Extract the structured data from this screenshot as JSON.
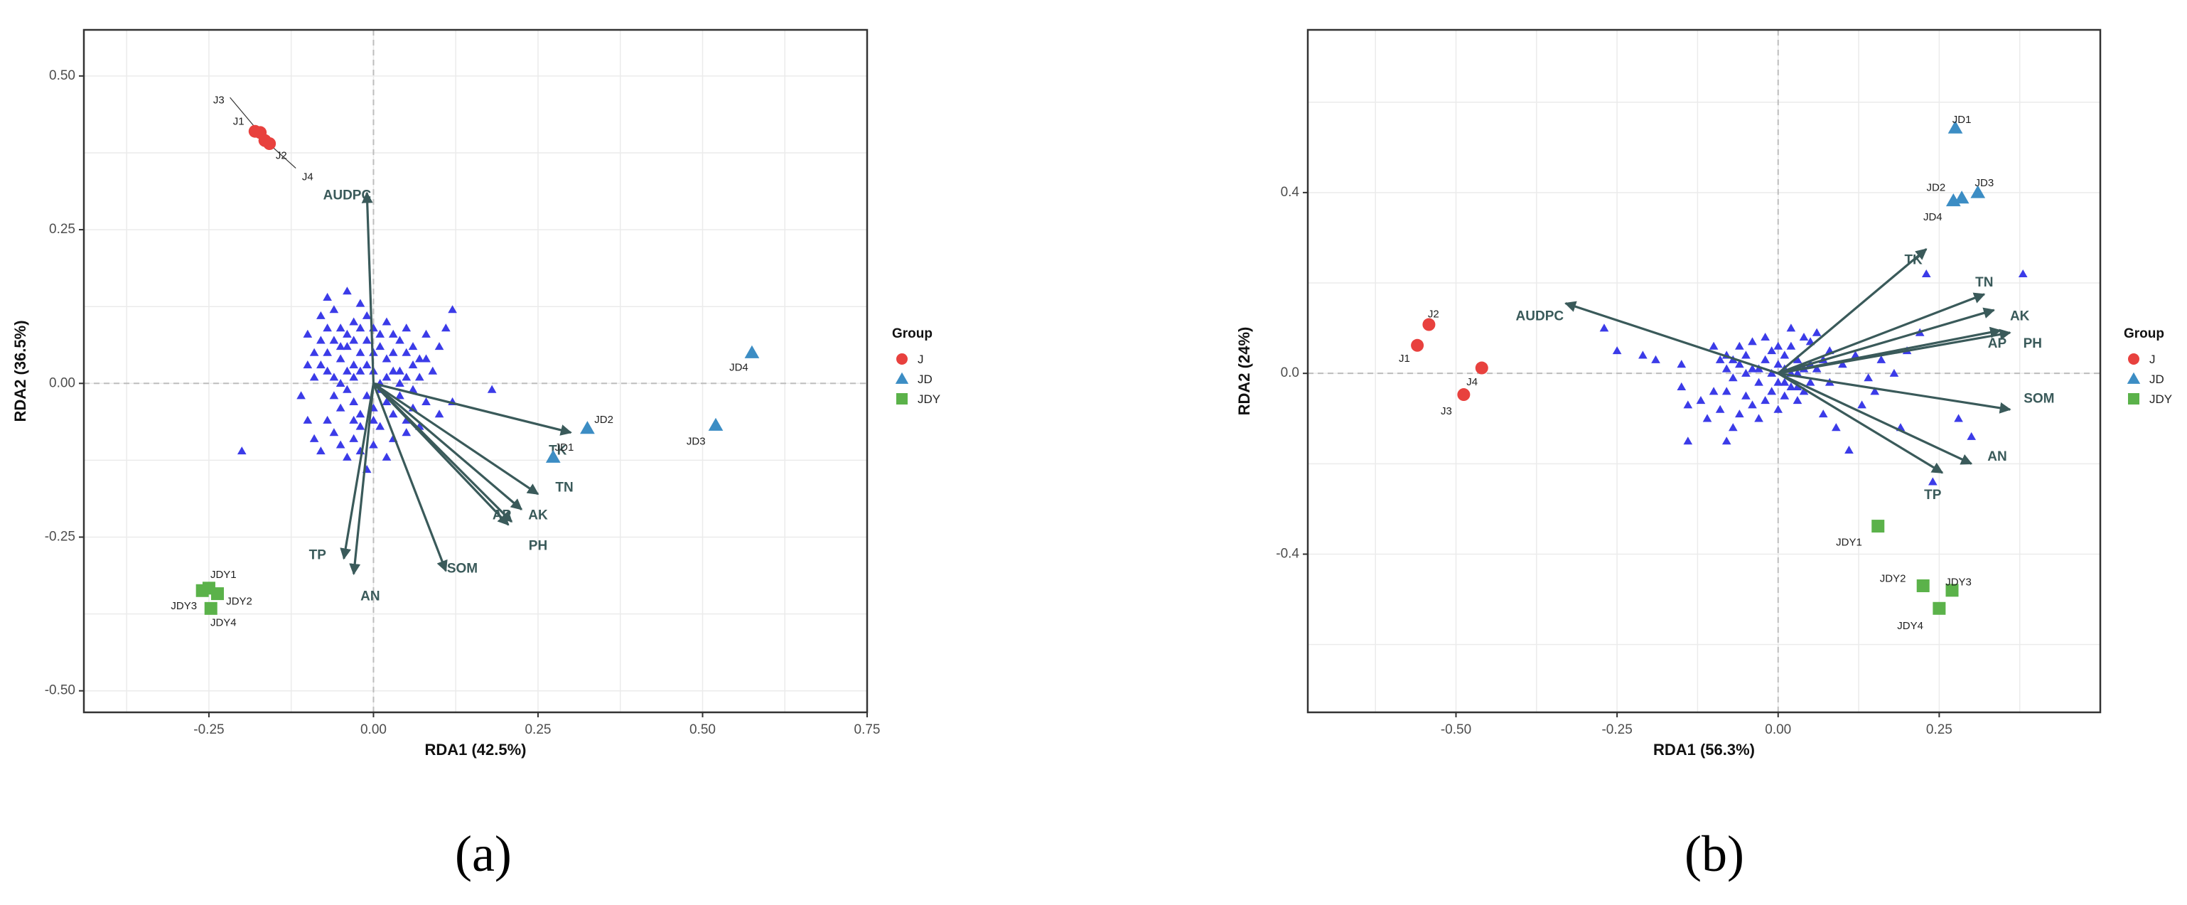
{
  "colors": {
    "J": "#E8413E",
    "JD": "#3C8DC4",
    "JDY": "#5BB24A",
    "species": "#3B3BE8",
    "arrow": "#3A5A5A",
    "grid": "#EBEBEB",
    "zero": "#BDBDBD"
  },
  "legend": {
    "title": "Group",
    "items": [
      {
        "label": "J",
        "shape": "circle",
        "color_key": "J"
      },
      {
        "label": "JD",
        "shape": "triangle",
        "color_key": "JD"
      },
      {
        "label": "JDY",
        "shape": "square",
        "color_key": "JDY"
      }
    ]
  },
  "captions": {
    "a": "(a)",
    "b": "(b)"
  },
  "chart_data": [
    {
      "type": "scatter",
      "id": "a",
      "xlabel": "RDA1 (42.5%)",
      "ylabel": "RDA2 (36.5%)",
      "xlim": [
        -0.44,
        0.75
      ],
      "ylim": [
        -0.535,
        0.575
      ],
      "xticks": [
        -0.25,
        0.0,
        0.25,
        0.5,
        0.75
      ],
      "xtick_labels": [
        "-0.25",
        "0.00",
        "0.25",
        "0.50",
        "0.75"
      ],
      "yticks": [
        -0.5,
        -0.25,
        0.0,
        0.25,
        0.5
      ],
      "ytick_labels": [
        "-0.50",
        "-0.25",
        "0.00",
        "0.25",
        "0.50"
      ],
      "samples": [
        {
          "name": "J1",
          "group": "J",
          "x": -0.18,
          "y": 0.41
        },
        {
          "name": "J2",
          "group": "J",
          "x": -0.165,
          "y": 0.395
        },
        {
          "name": "J3",
          "group": "J",
          "x": -0.172,
          "y": 0.408
        },
        {
          "name": "J4",
          "group": "J",
          "x": -0.158,
          "y": 0.39
        },
        {
          "name": "JD1",
          "group": "JD",
          "x": 0.273,
          "y": -0.12
        },
        {
          "name": "JD2",
          "group": "JD",
          "x": 0.325,
          "y": -0.073
        },
        {
          "name": "JD3",
          "group": "JD",
          "x": 0.52,
          "y": -0.068
        },
        {
          "name": "JD4",
          "group": "JD",
          "x": 0.575,
          "y": 0.05
        },
        {
          "name": "JDY1",
          "group": "JDY",
          "x": -0.25,
          "y": -0.333
        },
        {
          "name": "JDY2",
          "group": "JDY",
          "x": -0.237,
          "y": -0.342
        },
        {
          "name": "JDY3",
          "group": "JDY",
          "x": -0.26,
          "y": -0.337
        },
        {
          "name": "JDY4",
          "group": "JDY",
          "x": -0.247,
          "y": -0.366
        }
      ],
      "sample_labels": [
        {
          "text": "J3",
          "x": -0.235,
          "y": 0.46
        },
        {
          "text": "J1",
          "x": -0.205,
          "y": 0.425
        },
        {
          "text": "J2",
          "x": -0.14,
          "y": 0.37
        },
        {
          "text": "J4",
          "x": -0.1,
          "y": 0.335
        },
        {
          "text": "JD1",
          "x": 0.29,
          "y": -0.105
        },
        {
          "text": "JD2",
          "x": 0.35,
          "y": -0.06
        },
        {
          "text": "JD3",
          "x": 0.49,
          "y": -0.095
        },
        {
          "text": "JD4",
          "x": 0.555,
          "y": 0.025
        },
        {
          "text": "JDY1",
          "x": -0.228,
          "y": -0.312
        },
        {
          "text": "JDY2",
          "x": -0.204,
          "y": -0.355
        },
        {
          "text": "JDY3",
          "x": -0.288,
          "y": -0.363
        },
        {
          "text": "JDY4",
          "x": -0.228,
          "y": -0.39
        }
      ],
      "leader_lines": [
        {
          "from": [
            -0.218,
            0.465
          ],
          "to": [
            -0.178,
            0.414
          ]
        },
        {
          "from": [
            -0.155,
            0.386
          ],
          "to": [
            -0.118,
            0.35
          ]
        }
      ],
      "env_vectors": [
        {
          "name": "AUDPC",
          "x": -0.01,
          "y": 0.31,
          "lx": -0.04,
          "ly": 0.305
        },
        {
          "name": "TK",
          "x": 0.3,
          "y": -0.08,
          "lx": 0.28,
          "ly": -0.11
        },
        {
          "name": "TN",
          "x": 0.25,
          "y": -0.18,
          "lx": 0.29,
          "ly": -0.17
        },
        {
          "name": "AK",
          "x": 0.225,
          "y": -0.205,
          "lx": 0.25,
          "ly": -0.215
        },
        {
          "name": "AP",
          "x": 0.205,
          "y": -0.23,
          "lx": 0.195,
          "ly": -0.215
        },
        {
          "name": "PH",
          "x": 0.21,
          "y": -0.225,
          "lx": 0.25,
          "ly": -0.265
        },
        {
          "name": "SOM",
          "x": 0.11,
          "y": -0.305,
          "lx": 0.135,
          "ly": -0.302
        },
        {
          "name": "TP",
          "x": -0.045,
          "y": -0.285,
          "lx": -0.085,
          "ly": -0.28
        },
        {
          "name": "AN",
          "x": -0.03,
          "y": -0.31,
          "lx": -0.005,
          "ly": -0.347
        }
      ],
      "species": [
        [
          -0.06,
          0.12
        ],
        [
          -0.05,
          0.09
        ],
        [
          -0.04,
          0.15
        ],
        [
          -0.03,
          0.1
        ],
        [
          -0.02,
          0.13
        ],
        [
          -0.08,
          0.07
        ],
        [
          -0.07,
          0.05
        ],
        [
          -0.1,
          0.03
        ],
        [
          -0.09,
          0.01
        ],
        [
          -0.05,
          0.04
        ],
        [
          -0.04,
          0.06
        ],
        [
          -0.03,
          0.03
        ],
        [
          -0.02,
          0.05
        ],
        [
          -0.01,
          0.07
        ],
        [
          0.0,
          0.09
        ],
        [
          0.01,
          0.06
        ],
        [
          0.02,
          0.04
        ],
        [
          0.03,
          0.08
        ],
        [
          0.04,
          0.02
        ],
        [
          0.05,
          0.05
        ],
        [
          0.06,
          0.03
        ],
        [
          0.07,
          0.01
        ],
        [
          0.08,
          0.04
        ],
        [
          0.09,
          0.02
        ],
        [
          0.1,
          0.06
        ],
        [
          0.11,
          0.09
        ],
        [
          0.12,
          0.12
        ],
        [
          -0.06,
          -0.02
        ],
        [
          -0.05,
          -0.04
        ],
        [
          -0.04,
          -0.01
        ],
        [
          -0.03,
          -0.03
        ],
        [
          -0.02,
          -0.05
        ],
        [
          -0.01,
          -0.02
        ],
        [
          0.0,
          -0.04
        ],
        [
          0.01,
          -0.01
        ],
        [
          0.02,
          -0.03
        ],
        [
          0.03,
          -0.05
        ],
        [
          0.04,
          -0.02
        ],
        [
          0.05,
          -0.06
        ],
        [
          0.06,
          -0.04
        ],
        [
          0.07,
          -0.07
        ],
        [
          0.08,
          -0.03
        ],
        [
          -0.07,
          -0.06
        ],
        [
          -0.06,
          -0.08
        ],
        [
          -0.05,
          -0.1
        ],
        [
          -0.04,
          -0.12
        ],
        [
          -0.03,
          -0.09
        ],
        [
          -0.02,
          -0.11
        ],
        [
          -0.01,
          -0.14
        ],
        [
          0.0,
          -0.1
        ],
        [
          0.01,
          -0.07
        ],
        [
          0.02,
          -0.12
        ],
        [
          -0.09,
          -0.09
        ],
        [
          -0.08,
          -0.11
        ],
        [
          -0.1,
          -0.06
        ],
        [
          -0.11,
          -0.02
        ],
        [
          -0.2,
          -0.11
        ],
        [
          0.18,
          -0.01
        ],
        [
          0.12,
          -0.03
        ],
        [
          0.1,
          -0.05
        ],
        [
          -0.08,
          0.11
        ],
        [
          -0.07,
          0.09
        ],
        [
          -0.06,
          0.07
        ],
        [
          -0.05,
          0.06
        ],
        [
          -0.04,
          0.08
        ],
        [
          -0.03,
          0.07
        ],
        [
          -0.02,
          0.09
        ],
        [
          -0.01,
          0.11
        ],
        [
          0.0,
          0.05
        ],
        [
          0.01,
          0.08
        ],
        [
          0.02,
          0.1
        ],
        [
          0.03,
          0.05
        ],
        [
          0.04,
          0.07
        ],
        [
          0.05,
          0.09
        ],
        [
          0.06,
          0.06
        ],
        [
          0.07,
          0.04
        ],
        [
          0.08,
          0.08
        ],
        [
          -0.09,
          0.05
        ],
        [
          -0.08,
          0.03
        ],
        [
          -0.07,
          0.02
        ],
        [
          -0.06,
          0.01
        ],
        [
          -0.05,
          0.0
        ],
        [
          -0.04,
          0.02
        ],
        [
          -0.03,
          0.01
        ],
        [
          -0.02,
          0.02
        ],
        [
          -0.01,
          0.03
        ],
        [
          0.0,
          0.02
        ],
        [
          0.01,
          0.0
        ],
        [
          0.02,
          0.01
        ],
        [
          0.03,
          0.02
        ],
        [
          0.04,
          0.0
        ],
        [
          0.05,
          0.01
        ],
        [
          0.06,
          -0.01
        ],
        [
          -0.1,
          0.08
        ],
        [
          -0.02,
          -0.07
        ],
        [
          -0.03,
          -0.06
        ],
        [
          0.0,
          -0.06
        ],
        [
          0.03,
          -0.09
        ],
        [
          0.05,
          -0.08
        ],
        [
          -0.07,
          0.14
        ]
      ]
    },
    {
      "type": "scatter",
      "id": "b",
      "xlabel": "RDA1 (56.3%)",
      "ylabel": "RDA2 (24%)",
      "xlim": [
        -0.73,
        0.5
      ],
      "ylim": [
        -0.75,
        0.76
      ],
      "xticks": [
        -0.5,
        -0.25,
        0.0,
        0.25
      ],
      "xtick_labels": [
        "-0.50",
        "-0.25",
        "0.00",
        "0.25"
      ],
      "yticks": [
        -0.4,
        0.0,
        0.4
      ],
      "ytick_labels": [
        "-0.4",
        "0.0",
        "0.4"
      ],
      "samples": [
        {
          "name": "J1",
          "group": "J",
          "x": -0.56,
          "y": 0.062
        },
        {
          "name": "J2",
          "group": "J",
          "x": -0.542,
          "y": 0.108
        },
        {
          "name": "J3",
          "group": "J",
          "x": -0.488,
          "y": -0.047
        },
        {
          "name": "J4",
          "group": "J",
          "x": -0.46,
          "y": 0.012
        },
        {
          "name": "JD1",
          "group": "JD",
          "x": 0.275,
          "y": 0.543
        },
        {
          "name": "JD2",
          "group": "JD",
          "x": 0.285,
          "y": 0.388
        },
        {
          "name": "JD3",
          "group": "JD",
          "x": 0.31,
          "y": 0.4
        },
        {
          "name": "JD4",
          "group": "JD",
          "x": 0.272,
          "y": 0.382
        },
        {
          "name": "JDY1",
          "group": "JDY",
          "x": 0.155,
          "y": -0.338
        },
        {
          "name": "JDY2",
          "group": "JDY",
          "x": 0.225,
          "y": -0.47
        },
        {
          "name": "JDY3",
          "group": "JDY",
          "x": 0.27,
          "y": -0.48
        },
        {
          "name": "JDY4",
          "group": "JDY",
          "x": 0.25,
          "y": -0.52
        }
      ],
      "sample_labels": [
        {
          "text": "JD1",
          "x": 0.285,
          "y": 0.56
        },
        {
          "text": "JD2",
          "x": 0.245,
          "y": 0.41
        },
        {
          "text": "JD3",
          "x": 0.32,
          "y": 0.42
        },
        {
          "text": "JD4",
          "x": 0.24,
          "y": 0.345
        },
        {
          "text": "J2",
          "x": -0.535,
          "y": 0.13
        },
        {
          "text": "J1",
          "x": -0.58,
          "y": 0.032
        },
        {
          "text": "J4",
          "x": -0.475,
          "y": -0.02
        },
        {
          "text": "J3",
          "x": -0.515,
          "y": -0.085
        },
        {
          "text": "JDY1",
          "x": 0.11,
          "y": -0.375
        },
        {
          "text": "JDY2",
          "x": 0.178,
          "y": -0.455
        },
        {
          "text": "JDY3",
          "x": 0.28,
          "y": -0.463
        },
        {
          "text": "JDY4",
          "x": 0.205,
          "y": -0.56
        }
      ],
      "leader_lines": [],
      "env_vectors": [
        {
          "name": "AUDPC",
          "x": -0.33,
          "y": 0.155,
          "lx": -0.37,
          "ly": 0.125
        },
        {
          "name": "TK",
          "x": 0.23,
          "y": 0.275,
          "lx": 0.21,
          "ly": 0.25
        },
        {
          "name": "TN",
          "x": 0.32,
          "y": 0.175,
          "lx": 0.32,
          "ly": 0.2
        },
        {
          "name": "AK",
          "x": 0.335,
          "y": 0.14,
          "lx": 0.375,
          "ly": 0.125
        },
        {
          "name": "AP",
          "x": 0.345,
          "y": 0.095,
          "lx": 0.34,
          "ly": 0.065
        },
        {
          "name": "PH",
          "x": 0.36,
          "y": 0.09,
          "lx": 0.395,
          "ly": 0.065
        },
        {
          "name": "SOM",
          "x": 0.36,
          "y": -0.08,
          "lx": 0.405,
          "ly": -0.057
        },
        {
          "name": "AN",
          "x": 0.3,
          "y": -0.2,
          "lx": 0.34,
          "ly": -0.185
        },
        {
          "name": "TP",
          "x": 0.255,
          "y": -0.22,
          "lx": 0.24,
          "ly": -0.27
        }
      ],
      "species": [
        [
          -0.27,
          0.1
        ],
        [
          -0.25,
          0.05
        ],
        [
          -0.21,
          0.04
        ],
        [
          -0.19,
          0.03
        ],
        [
          -0.15,
          0.02
        ],
        [
          -0.15,
          -0.03
        ],
        [
          -0.14,
          -0.07
        ],
        [
          -0.1,
          0.06
        ],
        [
          -0.09,
          0.03
        ],
        [
          -0.08,
          0.01
        ],
        [
          -0.07,
          -0.01
        ],
        [
          -0.06,
          0.02
        ],
        [
          -0.05,
          0.04
        ],
        [
          -0.04,
          0.01
        ],
        [
          -0.03,
          -0.02
        ],
        [
          -0.02,
          0.03
        ],
        [
          -0.01,
          0.05
        ],
        [
          0.0,
          0.02
        ],
        [
          0.01,
          0.04
        ],
        [
          0.02,
          0.06
        ],
        [
          0.03,
          0.03
        ],
        [
          0.04,
          0.01
        ],
        [
          0.05,
          0.07
        ],
        [
          0.06,
          0.09
        ],
        [
          0.05,
          -0.02
        ],
        [
          0.04,
          -0.04
        ],
        [
          0.03,
          -0.06
        ],
        [
          0.02,
          -0.03
        ],
        [
          0.01,
          -0.05
        ],
        [
          0.0,
          -0.08
        ],
        [
          -0.01,
          -0.04
        ],
        [
          -0.02,
          -0.06
        ],
        [
          -0.03,
          -0.1
        ],
        [
          -0.04,
          -0.07
        ],
        [
          -0.05,
          -0.05
        ],
        [
          -0.06,
          -0.09
        ],
        [
          -0.07,
          -0.12
        ],
        [
          -0.08,
          -0.04
        ],
        [
          -0.09,
          -0.08
        ],
        [
          -0.1,
          -0.04
        ],
        [
          -0.11,
          -0.1
        ],
        [
          -0.12,
          -0.06
        ],
        [
          -0.14,
          -0.15
        ],
        [
          -0.08,
          -0.15
        ],
        [
          0.08,
          0.05
        ],
        [
          0.1,
          0.02
        ],
        [
          0.12,
          0.04
        ],
        [
          0.14,
          -0.01
        ],
        [
          0.16,
          0.03
        ],
        [
          0.18,
          0.0
        ],
        [
          0.2,
          0.05
        ],
        [
          0.22,
          0.09
        ],
        [
          0.13,
          -0.07
        ],
        [
          0.15,
          -0.04
        ],
        [
          0.07,
          -0.09
        ],
        [
          0.09,
          -0.12
        ],
        [
          0.11,
          -0.17
        ],
        [
          0.19,
          -0.12
        ],
        [
          0.23,
          0.22
        ],
        [
          0.28,
          -0.1
        ],
        [
          0.3,
          -0.14
        ],
        [
          0.24,
          -0.24
        ],
        [
          0.38,
          0.22
        ],
        [
          -0.02,
          0.08
        ],
        [
          -0.04,
          0.07
        ],
        [
          0.02,
          0.1
        ],
        [
          0.04,
          0.08
        ],
        [
          -0.06,
          0.06
        ],
        [
          0.0,
          -0.02
        ],
        [
          0.01,
          0.01
        ],
        [
          -0.01,
          0.0
        ],
        [
          0.02,
          0.0
        ],
        [
          -0.03,
          0.01
        ],
        [
          0.03,
          0.0
        ],
        [
          -0.05,
          0.0
        ],
        [
          0.05,
          0.02
        ],
        [
          0.06,
          0.01
        ],
        [
          -0.07,
          0.03
        ],
        [
          0.07,
          0.03
        ],
        [
          0.08,
          -0.02
        ],
        [
          -0.08,
          0.04
        ],
        [
          0.0,
          0.06
        ],
        [
          0.01,
          -0.02
        ],
        [
          0.03,
          -0.03
        ]
      ]
    }
  ]
}
